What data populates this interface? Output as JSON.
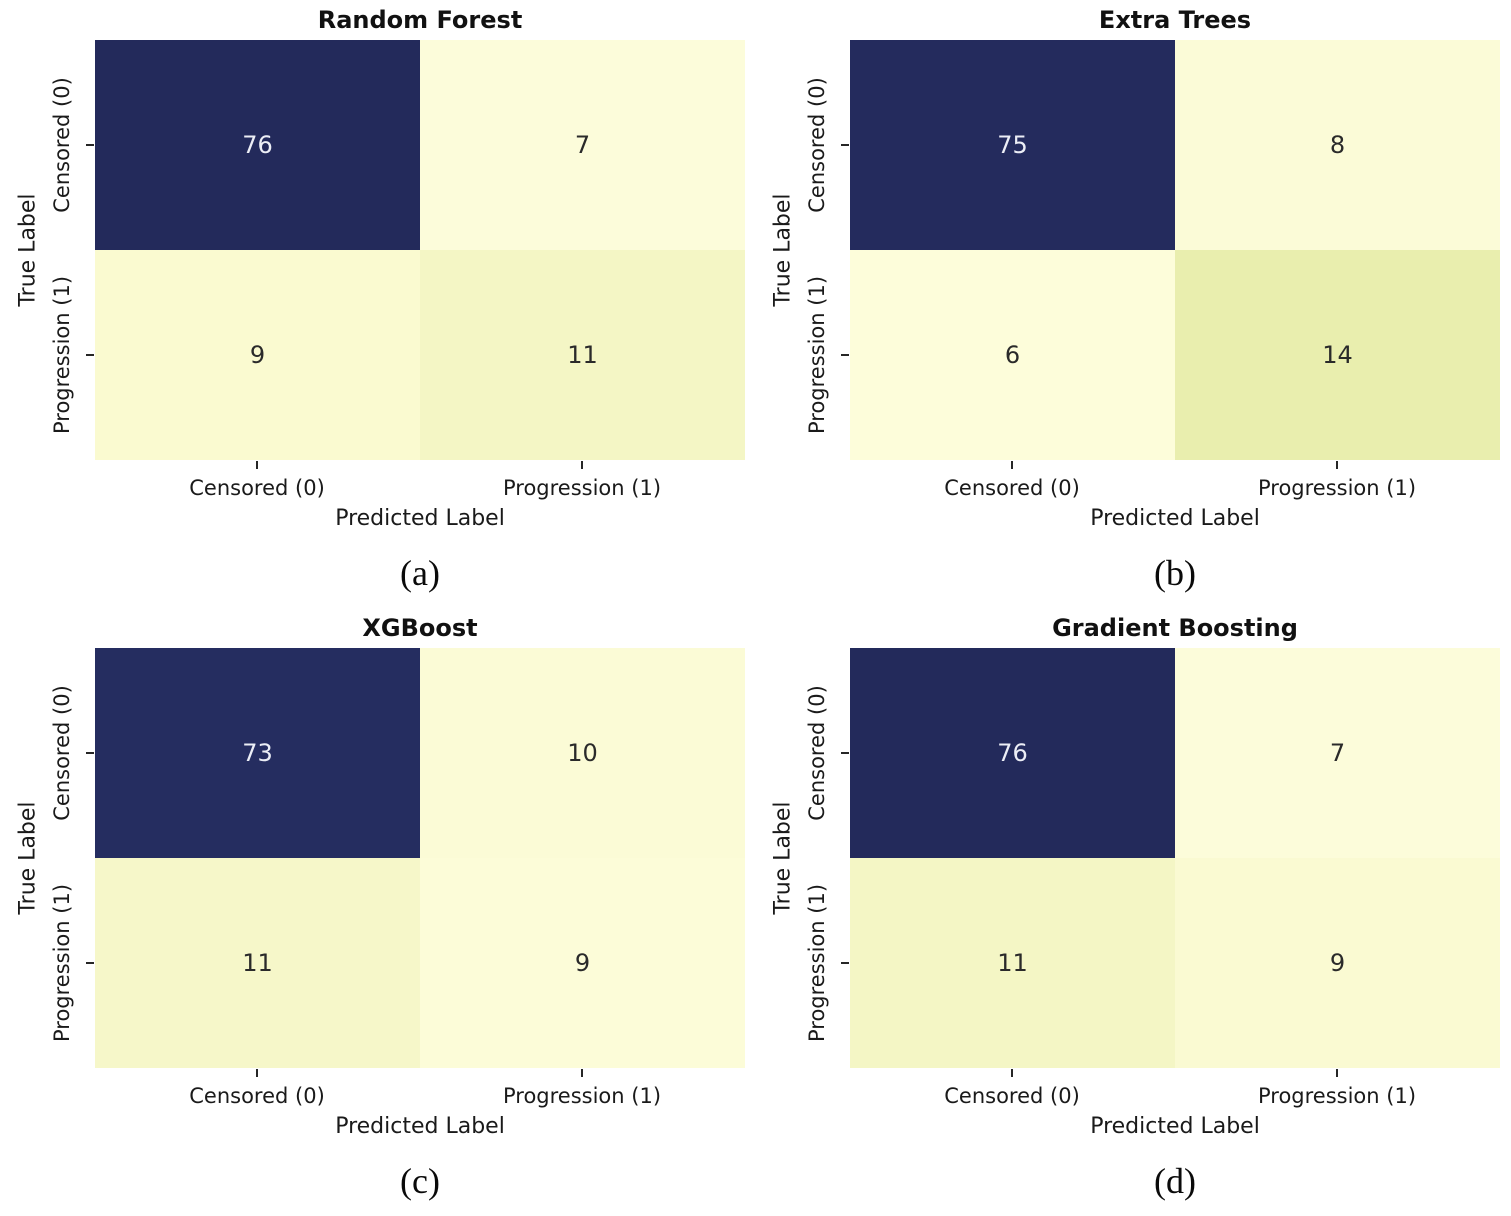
{
  "figure": {
    "axis": {
      "x_label": "Predicted Label",
      "y_label": "True Label",
      "x_ticks": [
        "Censored (0)",
        "Progression (1)"
      ],
      "y_ticks": [
        "Censored (0)",
        "Progression (1)"
      ]
    },
    "panels": [
      {
        "caption": "(a)",
        "title": "Random Forest",
        "cells": [
          [
            {
              "value": "76",
              "bg": "#232a5b",
              "fg": "#eceef6"
            },
            {
              "value": "7",
              "bg": "#fcfcda",
              "fg": "#2a2a2a"
            }
          ],
          [
            {
              "value": "9",
              "bg": "#fafad0",
              "fg": "#2a2a2a"
            },
            {
              "value": "11",
              "bg": "#f4f6c5",
              "fg": "#2a2a2a"
            }
          ]
        ]
      },
      {
        "caption": "(b)",
        "title": "Extra Trees",
        "cells": [
          [
            {
              "value": "75",
              "bg": "#242b5d",
              "fg": "#eceef6"
            },
            {
              "value": "8",
              "bg": "#fbfbd7",
              "fg": "#2a2a2a"
            }
          ],
          [
            {
              "value": "6",
              "bg": "#fdfdda",
              "fg": "#2a2a2a"
            },
            {
              "value": "14",
              "bg": "#e9eeae",
              "fg": "#2a2a2a"
            }
          ]
        ]
      },
      {
        "caption": "(c)",
        "title": "XGBoost",
        "cells": [
          [
            {
              "value": "73",
              "bg": "#252d60",
              "fg": "#eceef6"
            },
            {
              "value": "10",
              "bg": "#fbfbd6",
              "fg": "#2a2a2a"
            }
          ],
          [
            {
              "value": "11",
              "bg": "#f6f7c9",
              "fg": "#2a2a2a"
            },
            {
              "value": "9",
              "bg": "#fcfcd8",
              "fg": "#2a2a2a"
            }
          ]
        ]
      },
      {
        "caption": "(d)",
        "title": "Gradient Boosting",
        "cells": [
          [
            {
              "value": "76",
              "bg": "#232a5b",
              "fg": "#eceef6"
            },
            {
              "value": "7",
              "bg": "#fcfcda",
              "fg": "#2a2a2a"
            }
          ],
          [
            {
              "value": "11",
              "bg": "#f4f6c5",
              "fg": "#2a2a2a"
            },
            {
              "value": "9",
              "bg": "#fafad2",
              "fg": "#2a2a2a"
            }
          ]
        ]
      }
    ]
  },
  "colors": {
    "dark_cell": "#232a5b",
    "light_cell": "#fcfcda",
    "tick_mark": "#262626",
    "text": "#1a1a1a"
  },
  "chart_data": [
    {
      "type": "heatmap",
      "title": "Random Forest",
      "caption": "(a)",
      "xlabel": "Predicted Label",
      "ylabel": "True Label",
      "cols": [
        "Censored (0)",
        "Progression (1)"
      ],
      "rows": [
        "Censored (0)",
        "Progression (1)"
      ],
      "matrix": [
        [
          76,
          7
        ],
        [
          9,
          11
        ]
      ],
      "colormap": "YlGnBu",
      "legend": "off",
      "grid": "off"
    },
    {
      "type": "heatmap",
      "title": "Extra Trees",
      "caption": "(b)",
      "xlabel": "Predicted Label",
      "ylabel": "True Label",
      "cols": [
        "Censored (0)",
        "Progression (1)"
      ],
      "rows": [
        "Censored (0)",
        "Progression (1)"
      ],
      "matrix": [
        [
          75,
          8
        ],
        [
          6,
          14
        ]
      ],
      "colormap": "YlGnBu",
      "legend": "off",
      "grid": "off"
    },
    {
      "type": "heatmap",
      "title": "XGBoost",
      "caption": "(c)",
      "xlabel": "Predicted Label",
      "ylabel": "True Label",
      "cols": [
        "Censored (0)",
        "Progression (1)"
      ],
      "rows": [
        "Censored (0)",
        "Progression (1)"
      ],
      "matrix": [
        [
          73,
          10
        ],
        [
          11,
          9
        ]
      ],
      "colormap": "YlGnBu",
      "legend": "off",
      "grid": "off"
    },
    {
      "type": "heatmap",
      "title": "Gradient Boosting",
      "caption": "(d)",
      "xlabel": "Predicted Label",
      "ylabel": "True Label",
      "cols": [
        "Censored (0)",
        "Progression (1)"
      ],
      "rows": [
        "Censored (0)",
        "Progression (1)"
      ],
      "matrix": [
        [
          76,
          7
        ],
        [
          11,
          9
        ]
      ],
      "colormap": "YlGnBu",
      "legend": "off",
      "grid": "off"
    }
  ]
}
